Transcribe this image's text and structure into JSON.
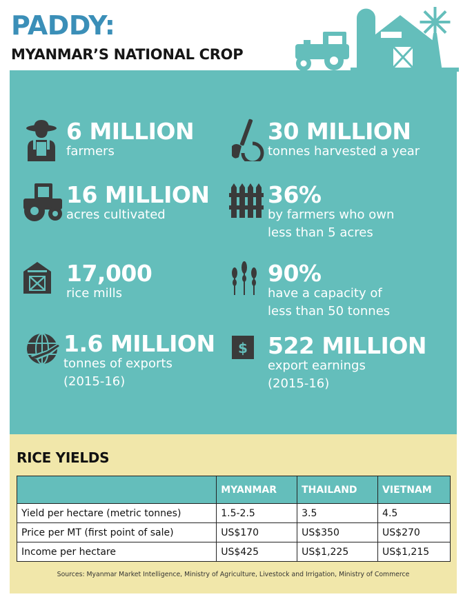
{
  "header": {
    "title": "PADDY:",
    "subtitle": "MYANMAR’S NATIONAL CROP"
  },
  "colors": {
    "title_blue": "#3b8fb8",
    "teal": "#64bebb",
    "icon_dark": "#3a3a3a",
    "cream": "#f1e7aa"
  },
  "stats": [
    {
      "icon": "farmer-icon",
      "value": "6 MILLION",
      "lines": [
        "farmers"
      ]
    },
    {
      "icon": "shovel-icon",
      "value": "30 MILLION",
      "lines": [
        "tonnes harvested a year"
      ]
    },
    {
      "icon": "tractor-icon",
      "value": "16 MILLION",
      "lines": [
        "acres cultivated"
      ]
    },
    {
      "icon": "fence-icon",
      "value": "36%",
      "lines": [
        "by farmers who own",
        "less than 5 acres"
      ]
    },
    {
      "icon": "barn-icon",
      "value": "17,000",
      "lines": [
        "rice mills"
      ]
    },
    {
      "icon": "wheat-icon",
      "value": "90%",
      "lines": [
        "have a capacity of",
        "less than 50 tonnes"
      ]
    },
    {
      "icon": "globe-icon",
      "value": "1.6 MILLION",
      "lines": [
        "tonnes of exports",
        "(2015-16)"
      ]
    },
    {
      "icon": "dollar-icon",
      "value": "522 MILLION",
      "lines": [
        "export earnings",
        "(2015-16)"
      ]
    }
  ],
  "yields": {
    "title": "RICE YIELDS",
    "columns": [
      "",
      "MYANMAR",
      "THAILAND",
      "VIETNAM"
    ],
    "rows": [
      [
        "Yield per hectare (metric tonnes)",
        "1.5-2.5",
        "3.5",
        "4.5"
      ],
      [
        "Price per MT (first point of sale)",
        "US$170",
        "US$350",
        "US$270"
      ],
      [
        "Income per hectare",
        "US$425",
        "US$1,225",
        "US$1,215"
      ]
    ],
    "sources": "Sources: Myanmar Market Intelligence, Ministry of Agriculture, Livestock and Irrigation, Ministry of Commerce"
  }
}
